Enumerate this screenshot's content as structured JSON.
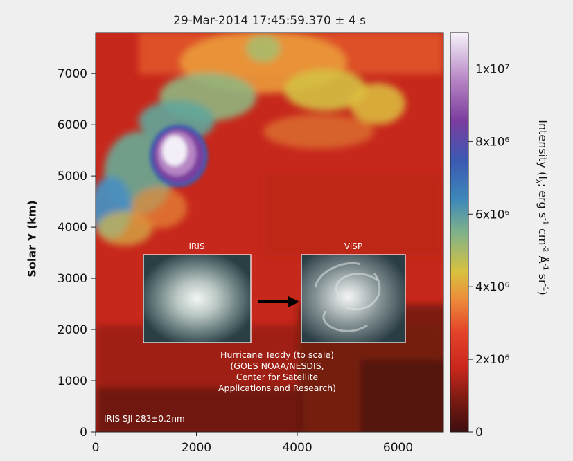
{
  "chart_data": {
    "type": "heatmap",
    "title": "29-Mar-2014 17:45:59.370 ± 4 s",
    "ylabel": "Solar Y (km)",
    "xlabel": "",
    "xlim": [
      0,
      6900
    ],
    "ylim": [
      0,
      7800
    ],
    "x_ticks": [
      "0",
      "2000",
      "4000",
      "6000"
    ],
    "x_tick_values": [
      0,
      2000,
      4000,
      6000
    ],
    "y_ticks": [
      "0",
      "1000",
      "2000",
      "3000",
      "4000",
      "5000",
      "6000",
      "7000"
    ],
    "y_tick_values": [
      0,
      1000,
      2000,
      3000,
      4000,
      5000,
      6000,
      7000
    ],
    "colorbar": {
      "label_main": "Intensity (I",
      "label_sub": "λ",
      "label_rest": "; erg s",
      "label_parts": [
        "-1",
        "cm",
        "-2",
        "Å",
        "-1",
        "sr",
        "-1"
      ],
      "tick_labels": [
        "0",
        "2x10⁶",
        "4x10⁶",
        "6x10⁶",
        "8x10⁶",
        "1x10⁷"
      ],
      "tick_values": [
        0,
        2000000,
        4000000,
        6000000,
        8000000,
        10000000
      ],
      "range": [
        0,
        11000000
      ],
      "colormap": [
        "#3d0e0e",
        "#7a1a12",
        "#c9271c",
        "#e4432a",
        "#ec8a3a",
        "#d9c13f",
        "#7fb28a",
        "#3f89b9",
        "#3b59b3",
        "#7b3d9e",
        "#b684c4",
        "#f6f3fb"
      ]
    },
    "features": [
      {
        "name": "bright core",
        "x": 1600,
        "y": 5500,
        "peak": 11000000
      },
      {
        "name": "west lobe",
        "x": 150,
        "y": 4500,
        "peak": 5800000
      }
    ],
    "insets": {
      "left_label": "IRIS",
      "right_label": "ViSP",
      "credit_lines": [
        "Hurricane Teddy (to scale)",
        "(GOES NOAA/NESDIS,",
        "Center for Satellite",
        "Applications and Research)"
      ]
    },
    "corner_label": "IRIS SJI 283±0.2nm",
    "grid": false
  }
}
